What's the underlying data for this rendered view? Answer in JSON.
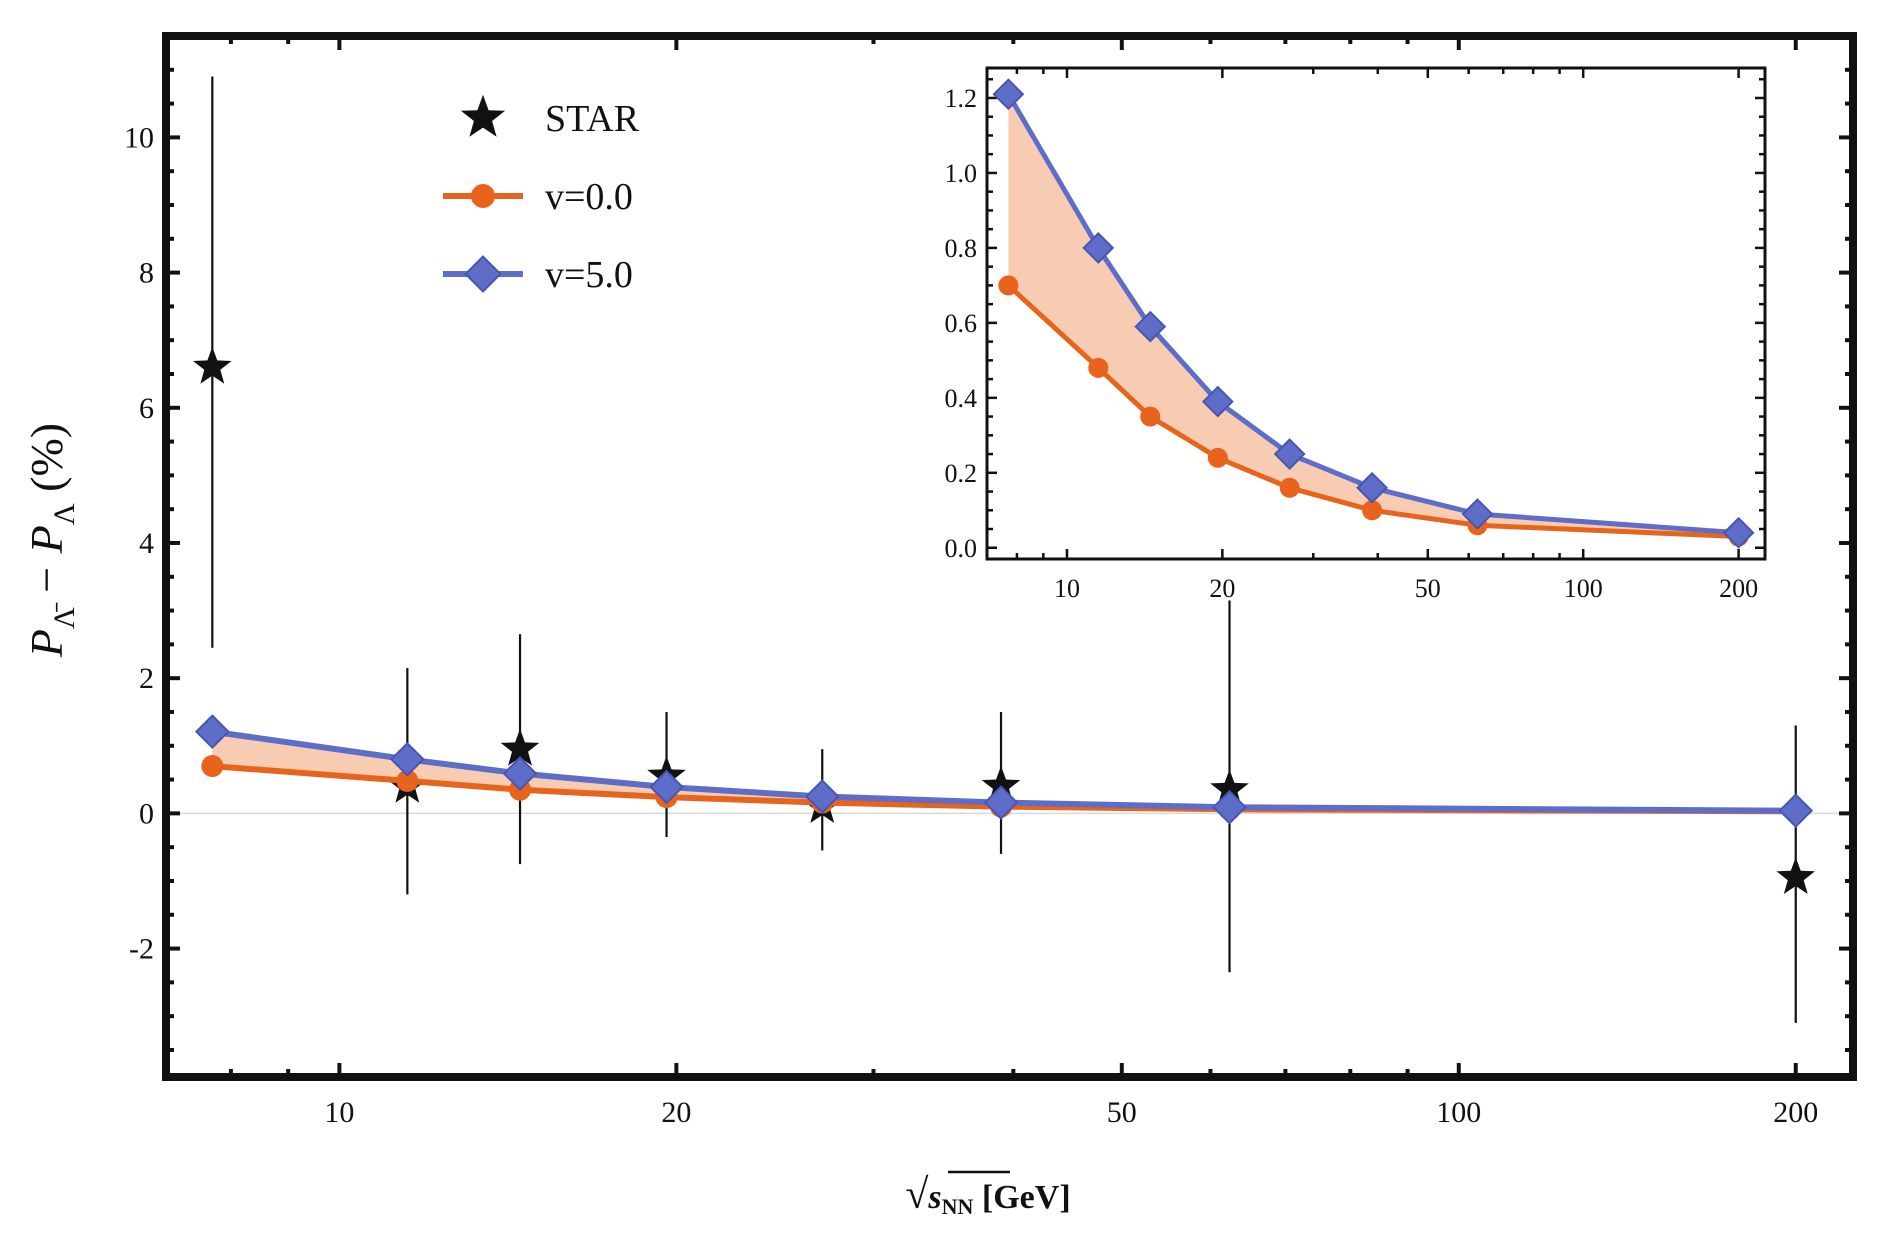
{
  "chart_data": [
    {
      "type": "line",
      "role": "main",
      "x_scale": "log",
      "xlim": [
        7.0,
        225.0
      ],
      "ylim": [
        -3.9,
        11.5
      ],
      "x_ticks": [
        10,
        20,
        50,
        100,
        200
      ],
      "x_tick_labels": [
        "10",
        "20",
        "50",
        "100",
        "200"
      ],
      "y_ticks": [
        -2,
        0,
        2,
        4,
        6,
        8,
        10
      ],
      "y_tick_labels": [
        "-2",
        "0",
        "2",
        "4",
        "6",
        "8",
        "10"
      ],
      "ylabel": {
        "parts": [
          "P",
          "Λ̄",
          " − P",
          "Λ",
          " (%)"
        ]
      },
      "xlabel": {
        "parts": [
          "√",
          "s",
          "NN",
          " [GeV]"
        ]
      },
      "legend": [
        {
          "label": "STAR",
          "marker": "star",
          "color": "#111111"
        },
        {
          "label": "v=0.0",
          "marker": "circle",
          "color": "#E8641C"
        },
        {
          "label": "v=5.0",
          "marker": "diamond",
          "color": "#5E6EC8"
        }
      ],
      "legend_position": "top-left",
      "band_color": "#F7C6AA",
      "star_data": {
        "x": [
          7.7,
          11.5,
          14.5,
          19.6,
          27.0,
          39.0,
          62.4,
          200.0
        ],
        "y": [
          6.6,
          0.4,
          0.95,
          0.55,
          0.1,
          0.4,
          0.35,
          -0.95
        ],
        "err_low": [
          2.45,
          -1.2,
          -0.75,
          -0.35,
          -0.55,
          -0.6,
          -2.35,
          -3.1
        ],
        "err_high": [
          10.9,
          2.15,
          2.65,
          1.5,
          0.95,
          1.5,
          3.15,
          1.3
        ]
      },
      "series": [
        {
          "name": "v=0.0",
          "color": "#E8641C",
          "marker": "circle",
          "x": [
            7.7,
            11.5,
            14.5,
            19.6,
            27.0,
            39.0,
            62.4,
            200.0
          ],
          "values": [
            0.7,
            0.48,
            0.35,
            0.24,
            0.16,
            0.1,
            0.06,
            0.03
          ]
        },
        {
          "name": "v=5.0",
          "color": "#5E6EC8",
          "marker": "diamond",
          "x": [
            7.7,
            11.5,
            14.5,
            19.6,
            27.0,
            39.0,
            62.4,
            200.0
          ],
          "values": [
            1.21,
            0.8,
            0.59,
            0.39,
            0.25,
            0.16,
            0.09,
            0.04
          ]
        }
      ]
    },
    {
      "type": "line",
      "role": "inset",
      "x_scale": "log",
      "xlim": [
        7.0,
        225.0
      ],
      "ylim": [
        -0.03,
        1.28
      ],
      "x_ticks": [
        10,
        20,
        50,
        100,
        200
      ],
      "x_tick_labels": [
        "10",
        "20",
        "50",
        "100",
        "200"
      ],
      "y_ticks": [
        0.0,
        0.2,
        0.4,
        0.6,
        0.8,
        1.0,
        1.2
      ],
      "y_tick_labels": [
        "0.0",
        "0.2",
        "0.4",
        "0.6",
        "0.8",
        "1.0",
        "1.2"
      ],
      "band_color": "#F7C6AA",
      "series": [
        {
          "name": "v=0.0",
          "color": "#E8641C",
          "marker": "circle",
          "x": [
            7.7,
            11.5,
            14.5,
            19.6,
            27.0,
            39.0,
            62.4,
            200.0
          ],
          "values": [
            0.7,
            0.48,
            0.35,
            0.24,
            0.16,
            0.1,
            0.06,
            0.03
          ]
        },
        {
          "name": "v=5.0",
          "color": "#5E6EC8",
          "marker": "diamond",
          "x": [
            7.7,
            11.5,
            14.5,
            19.6,
            27.0,
            39.0,
            62.4,
            200.0
          ],
          "values": [
            1.21,
            0.8,
            0.59,
            0.39,
            0.25,
            0.16,
            0.09,
            0.04
          ]
        }
      ]
    }
  ]
}
